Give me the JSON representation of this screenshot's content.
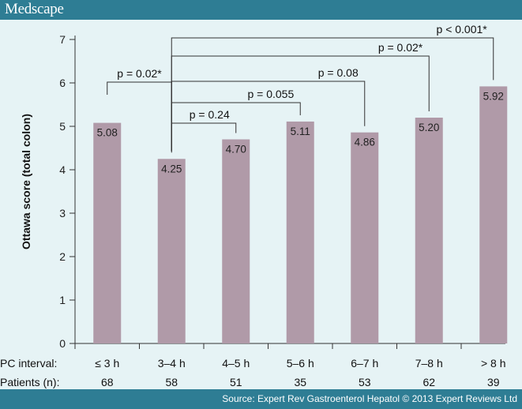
{
  "brand": "Medscape",
  "source": "Source: Expert Rev Gastroenterol Hepatol © 2013 Expert Reviews Ltd",
  "colors": {
    "header": "#2e7d94",
    "background": "#e6f3f5",
    "bar": "#b09aa8"
  },
  "chart_data": {
    "type": "bar",
    "title": "",
    "ylabel": "Ottawa score (total colon)",
    "ylim": [
      0,
      7
    ],
    "yticks": [
      0,
      1,
      2,
      3,
      4,
      5,
      6,
      7
    ],
    "row_labels": {
      "interval": "PC interval:",
      "patients": "Patients (n):"
    },
    "categories": [
      "≤ 3 h",
      "3–4 h",
      "4–5 h",
      "5–6 h",
      "6–7 h",
      "7–8 h",
      "> 8 h"
    ],
    "patients": [
      "68",
      "58",
      "51",
      "35",
      "53",
      "62",
      "39"
    ],
    "values": [
      5.08,
      4.25,
      4.7,
      5.11,
      4.86,
      5.2,
      5.92
    ],
    "value_labels": [
      "5.08",
      "4.25",
      "4.70",
      "5.11",
      "4.86",
      "5.20",
      "5.92"
    ],
    "comparisons": [
      {
        "label": "p = 0.02*",
        "from": 0,
        "to": 1
      },
      {
        "label": "p = 0.24",
        "from": 1,
        "to": 2
      },
      {
        "label": "p = 0.055",
        "from": 1,
        "to": 3
      },
      {
        "label": "p = 0.08",
        "from": 1,
        "to": 4
      },
      {
        "label": "p = 0.02*",
        "from": 1,
        "to": 5
      },
      {
        "label": "p < 0.001*",
        "from": 1,
        "to": 6
      }
    ],
    "grid": false
  }
}
